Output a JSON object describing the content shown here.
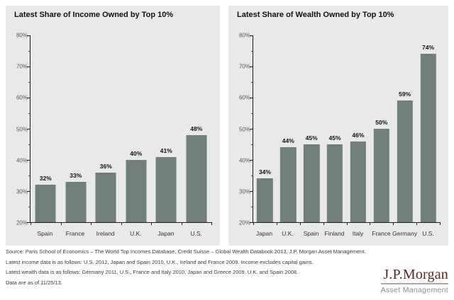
{
  "colors": {
    "panel_bg": "#e9eae7",
    "bar": "#71807a",
    "axis": "#1a1a1a",
    "brand": "#5e281c",
    "brand_subtitle": "#8d8d8d"
  },
  "chart_data": [
    {
      "type": "bar",
      "title": "Latest Share of Income Owned by Top 10%",
      "categories": [
        "Spain",
        "France",
        "Ireland",
        "U.K.",
        "Japan",
        "U.S."
      ],
      "values": [
        32,
        33,
        36,
        40,
        41,
        48
      ],
      "data_labels": [
        "32%",
        "33%",
        "36%",
        "40%",
        "41%",
        "48%"
      ],
      "xlabel": "",
      "ylabel": "",
      "ylim": [
        20,
        80
      ],
      "ytick_step": 10,
      "ytick_labels": [
        "20%",
        "30%",
        "40%",
        "50%",
        "60%",
        "70%",
        "80%"
      ],
      "minor_tick_step": 5,
      "grid": false,
      "legend": "none",
      "bar_color": "#71807a"
    },
    {
      "type": "bar",
      "title": "Latest Share of Wealth Owned by Top 10%",
      "categories": [
        "Japan",
        "U.K.",
        "Spain",
        "Finland",
        "Italy",
        "France",
        "Germany",
        "U.S."
      ],
      "values": [
        34,
        44,
        45,
        45,
        46,
        50,
        59,
        74
      ],
      "data_labels": [
        "34%",
        "44%",
        "45%",
        "45%",
        "46%",
        "50%",
        "59%",
        "74%"
      ],
      "xlabel": "",
      "ylabel": "",
      "ylim": [
        20,
        80
      ],
      "ytick_step": 10,
      "ytick_labels": [
        "20%",
        "30%",
        "40%",
        "50%",
        "60%",
        "70%",
        "80%"
      ],
      "minor_tick_step": 5,
      "grid": false,
      "legend": "none",
      "bar_color": "#71807a"
    }
  ],
  "footer": {
    "lines": [
      "Source: Paris School of Economics – The World Top Incomes Database, Credit Suisse – Global Wealth Databook 2013, J.P. Morgan Asset Management.",
      "Latest income data is as follows: U.S. 2012, Japan and Spain 2010, U.K., Ireland and France 2009. Income excludes capital gains.",
      "Latest wealth data is as follows: Germany 2011, U.S., France and Italy 2010, Japan and Greece 2009, U.K. and Spain 2008.",
      "Data are as of 11/25/13."
    ]
  },
  "logo": {
    "brand": "J.P.Morgan",
    "subtitle": "Asset Management"
  }
}
